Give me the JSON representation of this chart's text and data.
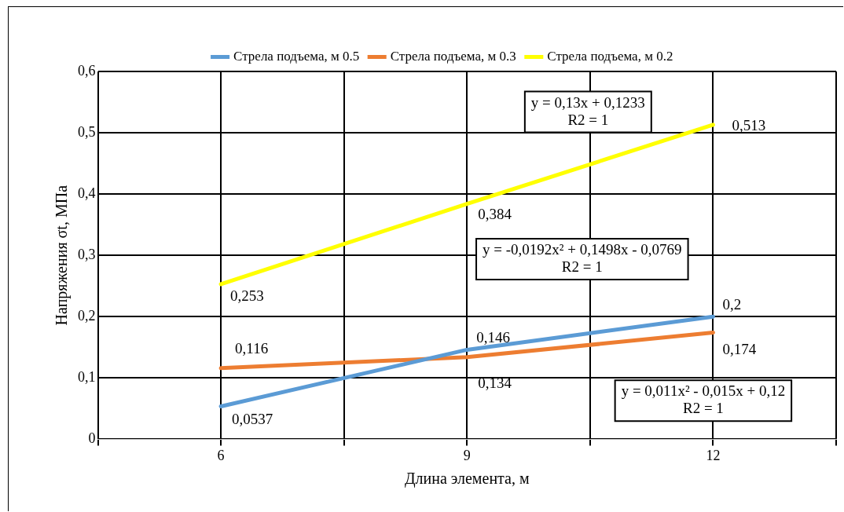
{
  "chart_data": {
    "type": "line",
    "xlabel": "Длина элемента, м",
    "ylabel": "Напряжения σt, МПа",
    "xlim": [
      4.5,
      13.5
    ],
    "xticks": [
      {
        "value": 4.5,
        "label": null
      },
      6,
      {
        "value": 7.5,
        "label": null
      },
      9,
      {
        "value": 10.5,
        "label": null
      },
      12,
      {
        "value": 13.5,
        "label": null
      }
    ],
    "ylim": [
      0,
      0.6
    ],
    "yticks": [
      0,
      {
        "value": 0.1,
        "label": "0,1"
      },
      {
        "value": 0.2,
        "label": "0,2"
      },
      {
        "value": 0.3,
        "label": "0,3"
      },
      {
        "value": 0.4,
        "label": "0,4"
      },
      {
        "value": 0.5,
        "label": "0,5"
      },
      {
        "value": 0.6,
        "label": "0,6"
      }
    ],
    "x": [
      6,
      9,
      12
    ],
    "series": [
      {
        "name": "Стрела подъема, м 0.5",
        "color": "#5b9bd5",
        "values": [
          0.0537,
          0.146,
          0.2
        ],
        "value_labels": [
          "0,0537",
          "0,146",
          "0,2"
        ]
      },
      {
        "name": "Стрела подъема, м 0.3",
        "color": "#ed7d31",
        "values": [
          0.116,
          0.134,
          0.174
        ],
        "value_labels": [
          "0,116",
          "0,134",
          "0,174"
        ]
      },
      {
        "name": "Стрела подъема, м 0.2",
        "color": "#ffff00",
        "values": [
          0.253,
          0.384,
          0.513
        ],
        "value_labels": [
          "0,253",
          "0,384",
          "0,513"
        ]
      }
    ],
    "annotations": [
      "y = 0,13x + 0,1233\nR2 = 1",
      "y = -0,0192x² + 0,1498x - 0,0769\nR2 = 1",
      "y = 0,011x² - 0,015x + 0,12\nR2 = 1"
    ],
    "grid": true,
    "legend": "top",
    "marker": "none",
    "line_style": "solid"
  }
}
